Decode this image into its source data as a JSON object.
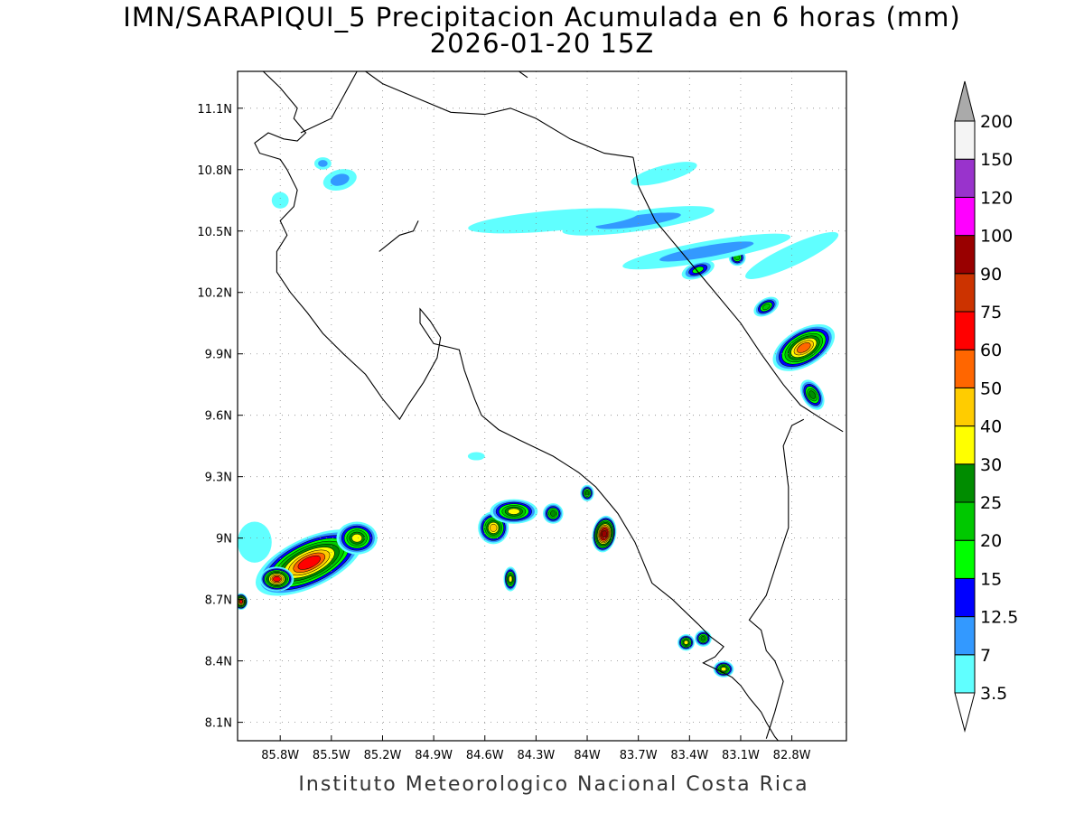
{
  "title": "IMN/SARAPIQUI_5 Precipitacion Acumulada en 6 horas (mm)",
  "subtitle": "2026-01-20 15Z",
  "footer": "Instituto Meteorologico Nacional Costa Rica",
  "map": {
    "lon_range": [
      -86.05,
      -82.48
    ],
    "lat_range": [
      8.01,
      11.28
    ],
    "lon_ticks": [
      {
        "value": -85.8,
        "label": "85.8W"
      },
      {
        "value": -85.5,
        "label": "85.5W"
      },
      {
        "value": -85.2,
        "label": "85.2W"
      },
      {
        "value": -84.9,
        "label": "84.9W"
      },
      {
        "value": -84.6,
        "label": "84.6W"
      },
      {
        "value": -84.3,
        "label": "84.3W"
      },
      {
        "value": -84.0,
        "label": "84W"
      },
      {
        "value": -83.7,
        "label": "83.7W"
      },
      {
        "value": -83.4,
        "label": "83.4W"
      },
      {
        "value": -83.1,
        "label": "83.1W"
      },
      {
        "value": -82.8,
        "label": "82.8W"
      }
    ],
    "lat_ticks": [
      {
        "value": 8.1,
        "label": "8.1N"
      },
      {
        "value": 8.4,
        "label": "8.4N"
      },
      {
        "value": 8.7,
        "label": "8.7N"
      },
      {
        "value": 9.0,
        "label": "9N"
      },
      {
        "value": 9.3,
        "label": "9.3N"
      },
      {
        "value": 9.6,
        "label": "9.6N"
      },
      {
        "value": 9.9,
        "label": "9.9N"
      },
      {
        "value": 10.2,
        "label": "10.2N"
      },
      {
        "value": 10.5,
        "label": "10.5N"
      },
      {
        "value": 10.8,
        "label": "10.8N"
      },
      {
        "value": 11.1,
        "label": "11.1N"
      }
    ],
    "grid": true
  },
  "colorbar": {
    "levels": [
      {
        "label": "3.5",
        "color": "#60ffff"
      },
      {
        "label": "7",
        "color": "#3399ff"
      },
      {
        "label": "12.5",
        "color": "#0000ff"
      },
      {
        "label": "15",
        "color": "#00ff00"
      },
      {
        "label": "20",
        "color": "#00c800"
      },
      {
        "label": "25",
        "color": "#008c00"
      },
      {
        "label": "30",
        "color": "#ffff00"
      },
      {
        "label": "40",
        "color": "#ffcc00"
      },
      {
        "label": "50",
        "color": "#ff6600"
      },
      {
        "label": "60",
        "color": "#ff0000"
      },
      {
        "label": "75",
        "color": "#cc3300"
      },
      {
        "label": "90",
        "color": "#990000"
      },
      {
        "label": "100",
        "color": "#ff00ff"
      },
      {
        "label": "120",
        "color": "#9933cc"
      },
      {
        "label": "150",
        "color": "#f4f4f4"
      },
      {
        "label": "200",
        "color": "#aaaaaa"
      }
    ]
  },
  "rain_cells": [
    {
      "lon": -85.63,
      "lat": 8.88,
      "rx": 0.34,
      "ry": 0.12,
      "rot": -25,
      "max": 65
    },
    {
      "lon": -85.82,
      "lat": 8.8,
      "rx": 0.1,
      "ry": 0.06,
      "rot": 0,
      "max": 62
    },
    {
      "lon": -85.35,
      "lat": 9.0,
      "rx": 0.12,
      "ry": 0.08,
      "rot": 0,
      "max": 30
    },
    {
      "lon": -86.03,
      "lat": 8.69,
      "rx": 0.04,
      "ry": 0.04,
      "rot": 0,
      "max": 62
    },
    {
      "lon": -84.55,
      "lat": 9.05,
      "rx": 0.09,
      "ry": 0.08,
      "rot": 0,
      "max": 45
    },
    {
      "lon": -84.43,
      "lat": 9.13,
      "rx": 0.14,
      "ry": 0.06,
      "rot": 0,
      "max": 32
    },
    {
      "lon": -84.2,
      "lat": 9.12,
      "rx": 0.06,
      "ry": 0.05,
      "rot": 0,
      "max": 25
    },
    {
      "lon": -84.45,
      "lat": 8.8,
      "rx": 0.04,
      "ry": 0.06,
      "rot": 0,
      "max": 30
    },
    {
      "lon": -83.9,
      "lat": 9.02,
      "rx": 0.07,
      "ry": 0.09,
      "rot": 10,
      "max": 90
    },
    {
      "lon": -84.0,
      "lat": 9.22,
      "rx": 0.04,
      "ry": 0.04,
      "rot": 0,
      "max": 25
    },
    {
      "lon": -82.73,
      "lat": 9.93,
      "rx": 0.2,
      "ry": 0.09,
      "rot": -30,
      "max": 55
    },
    {
      "lon": -82.68,
      "lat": 9.7,
      "rx": 0.06,
      "ry": 0.08,
      "rot": -30,
      "max": 28
    },
    {
      "lon": -82.95,
      "lat": 10.13,
      "rx": 0.08,
      "ry": 0.04,
      "rot": -30,
      "max": 22
    },
    {
      "lon": -83.35,
      "lat": 10.31,
      "rx": 0.1,
      "ry": 0.04,
      "rot": -20,
      "max": 16
    },
    {
      "lon": -83.12,
      "lat": 10.37,
      "rx": 0.05,
      "ry": 0.04,
      "rot": 0,
      "max": 22
    },
    {
      "lon": -83.42,
      "lat": 8.49,
      "rx": 0.05,
      "ry": 0.04,
      "rot": 0,
      "max": 30
    },
    {
      "lon": -83.32,
      "lat": 8.51,
      "rx": 0.05,
      "ry": 0.04,
      "rot": 0,
      "max": 28
    },
    {
      "lon": -83.2,
      "lat": 8.36,
      "rx": 0.06,
      "ry": 0.04,
      "rot": 0,
      "max": 30
    },
    {
      "lon": -83.7,
      "lat": 10.55,
      "rx": 0.45,
      "ry": 0.05,
      "rot": -8,
      "max": 10
    },
    {
      "lon": -84.2,
      "lat": 10.55,
      "rx": 0.5,
      "ry": 0.05,
      "rot": -5,
      "max": 6
    },
    {
      "lon": -83.3,
      "lat": 10.4,
      "rx": 0.5,
      "ry": 0.05,
      "rot": -10,
      "max": 8
    },
    {
      "lon": -82.8,
      "lat": 10.38,
      "rx": 0.3,
      "ry": 0.05,
      "rot": -25,
      "max": 6
    },
    {
      "lon": -85.55,
      "lat": 10.83,
      "rx": 0.05,
      "ry": 0.03,
      "rot": 0,
      "max": 8
    },
    {
      "lon": -85.45,
      "lat": 10.75,
      "rx": 0.1,
      "ry": 0.05,
      "rot": -15,
      "max": 9
    },
    {
      "lon": -85.95,
      "lat": 8.98,
      "rx": 0.1,
      "ry": 0.1,
      "rot": 0,
      "max": 4
    },
    {
      "lon": -83.55,
      "lat": 10.78,
      "rx": 0.2,
      "ry": 0.04,
      "rot": -15,
      "max": 6
    },
    {
      "lon": -85.8,
      "lat": 10.65,
      "rx": 0.05,
      "ry": 0.04,
      "rot": 0,
      "max": 4
    },
    {
      "lon": -84.65,
      "lat": 9.4,
      "rx": 0.05,
      "ry": 0.02,
      "rot": 0,
      "max": 4
    }
  ],
  "coastlines": [
    [
      [
        -85.3,
        11.28
      ],
      [
        -85.2,
        11.22
      ],
      [
        -85.0,
        11.15
      ],
      [
        -84.8,
        11.08
      ],
      [
        -84.6,
        11.07
      ],
      [
        -84.45,
        11.1
      ],
      [
        -84.3,
        11.05
      ],
      [
        -84.1,
        10.95
      ],
      [
        -83.9,
        10.88
      ],
      [
        -83.73,
        10.86
      ]
    ],
    [
      [
        -85.9,
        11.28
      ],
      [
        -85.8,
        11.2
      ],
      [
        -85.7,
        11.1
      ],
      [
        -85.72,
        11.05
      ],
      [
        -85.65,
        10.98
      ],
      [
        -85.7,
        10.94
      ],
      [
        -85.78,
        10.95
      ],
      [
        -85.87,
        10.98
      ],
      [
        -85.95,
        10.93
      ],
      [
        -85.92,
        10.88
      ],
      [
        -85.8,
        10.85
      ],
      [
        -85.76,
        10.8
      ],
      [
        -85.7,
        10.7
      ],
      [
        -85.72,
        10.62
      ],
      [
        -85.8,
        10.55
      ],
      [
        -85.76,
        10.48
      ],
      [
        -85.82,
        10.4
      ],
      [
        -85.82,
        10.3
      ],
      [
        -85.74,
        10.2
      ],
      [
        -85.64,
        10.1
      ],
      [
        -85.55,
        10.0
      ],
      [
        -85.43,
        9.9
      ],
      [
        -85.3,
        9.8
      ],
      [
        -85.2,
        9.68
      ],
      [
        -85.1,
        9.58
      ],
      [
        -85.05,
        9.65
      ],
      [
        -84.96,
        9.76
      ],
      [
        -84.88,
        9.88
      ],
      [
        -84.86,
        9.98
      ],
      [
        -84.92,
        10.06
      ],
      [
        -84.98,
        10.12
      ],
      [
        -84.98,
        10.05
      ],
      [
        -84.9,
        9.95
      ],
      [
        -84.8,
        9.93
      ],
      [
        -84.75,
        9.92
      ],
      [
        -84.72,
        9.82
      ],
      [
        -84.66,
        9.68
      ],
      [
        -84.62,
        9.6
      ],
      [
        -84.52,
        9.53
      ],
      [
        -84.4,
        9.48
      ],
      [
        -84.2,
        9.4
      ],
      [
        -84.05,
        9.32
      ],
      [
        -83.95,
        9.25
      ],
      [
        -83.82,
        9.12
      ],
      [
        -83.72,
        8.98
      ],
      [
        -83.62,
        8.78
      ],
      [
        -83.5,
        8.7
      ],
      [
        -83.4,
        8.62
      ],
      [
        -83.35,
        8.58
      ],
      [
        -83.28,
        8.52
      ],
      [
        -83.2,
        8.47
      ],
      [
        -83.25,
        8.42
      ],
      [
        -83.32,
        8.39
      ],
      [
        -83.22,
        8.35
      ],
      [
        -83.15,
        8.32
      ],
      [
        -83.1,
        8.28
      ],
      [
        -83.05,
        8.22
      ],
      [
        -82.98,
        8.15
      ],
      [
        -82.95,
        8.1
      ],
      [
        -82.9,
        8.03
      ],
      [
        -82.88,
        8.01
      ]
    ],
    [
      [
        -85.22,
        10.4
      ],
      [
        -85.1,
        10.48
      ],
      [
        -85.02,
        10.5
      ],
      [
        -84.99,
        10.55
      ]
    ],
    [
      [
        -84.4,
        11.28
      ],
      [
        -84.35,
        11.25
      ]
    ]
  ],
  "borders": [
    [
      [
        -83.73,
        10.86
      ],
      [
        -83.7,
        10.72
      ],
      [
        -83.6,
        10.55
      ],
      [
        -83.45,
        10.4
      ],
      [
        -83.3,
        10.25
      ],
      [
        -83.1,
        10.05
      ],
      [
        -82.98,
        9.9
      ],
      [
        -82.85,
        9.75
      ],
      [
        -82.75,
        9.65
      ],
      [
        -82.62,
        9.58
      ],
      [
        -82.5,
        9.52
      ]
    ],
    [
      [
        -82.95,
        8.02
      ],
      [
        -82.9,
        8.15
      ],
      [
        -82.85,
        8.3
      ],
      [
        -82.9,
        8.4
      ],
      [
        -82.95,
        8.45
      ],
      [
        -82.98,
        8.55
      ],
      [
        -83.05,
        8.6
      ],
      [
        -82.95,
        8.72
      ],
      [
        -82.88,
        8.9
      ],
      [
        -82.82,
        9.05
      ],
      [
        -82.82,
        9.25
      ],
      [
        -82.85,
        9.45
      ],
      [
        -82.8,
        9.55
      ],
      [
        -82.73,
        9.58
      ]
    ],
    [
      [
        -85.35,
        11.28
      ],
      [
        -85.5,
        11.05
      ],
      [
        -85.68,
        10.98
      ]
    ]
  ]
}
